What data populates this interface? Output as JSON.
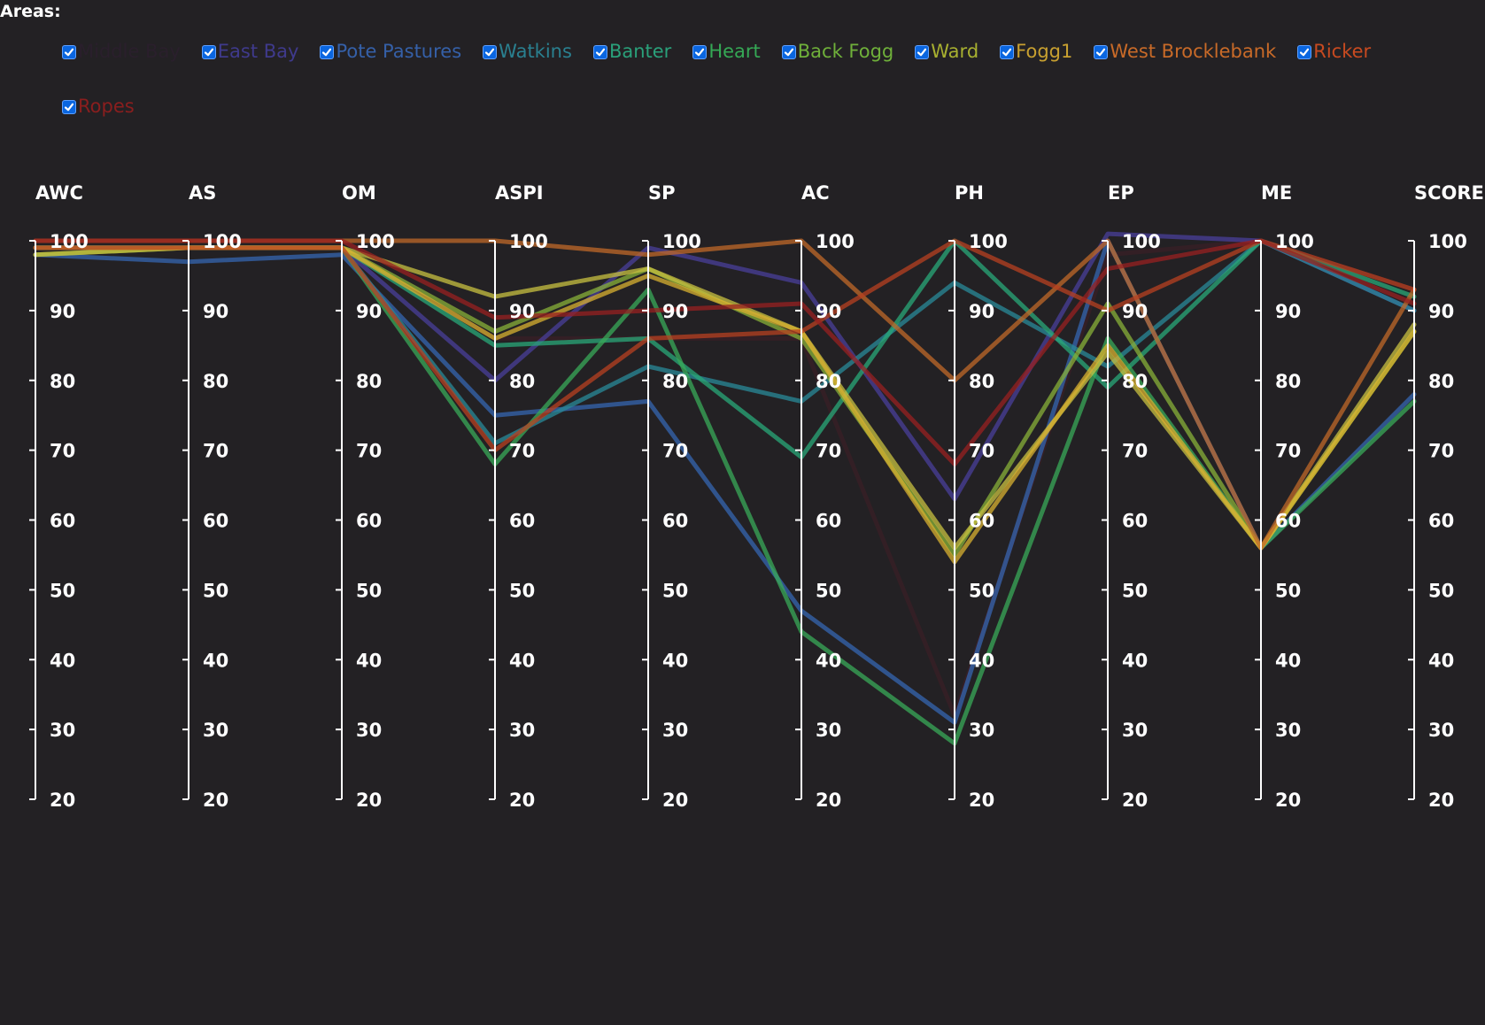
{
  "header": {
    "areas_label": "Areas:"
  },
  "legend": [
    {
      "name": "Middle Bay",
      "color": "#2a1f2c",
      "checked": true
    },
    {
      "name": "East Bay",
      "color": "#3f3a8c",
      "checked": true
    },
    {
      "name": "Pote Pastures",
      "color": "#3560a8",
      "checked": true
    },
    {
      "name": "Watkins",
      "color": "#2a8090",
      "checked": true
    },
    {
      "name": "Banter",
      "color": "#2aa07a",
      "checked": true
    },
    {
      "name": "Heart",
      "color": "#35a855",
      "checked": true
    },
    {
      "name": "Back Fogg",
      "color": "#6fb03a",
      "checked": true
    },
    {
      "name": "Ward",
      "color": "#a8b030",
      "checked": true
    },
    {
      "name": "Fogg1",
      "color": "#c8a030",
      "checked": true
    },
    {
      "name": "West Brocklebank",
      "color": "#c86a28",
      "checked": true
    },
    {
      "name": "Ricker",
      "color": "#c84a20",
      "checked": true
    },
    {
      "name": "Ropes",
      "color": "#8a1e1e",
      "checked": true
    }
  ],
  "chart_data": {
    "type": "parallel_coordinates",
    "axes": [
      "AWC",
      "AS",
      "OM",
      "ASPI",
      "SP",
      "AC",
      "PH",
      "EP",
      "ME",
      "SCORE"
    ],
    "ylim": [
      20,
      100
    ],
    "ticks": [
      100,
      90,
      80,
      70,
      60,
      50,
      40,
      30,
      20
    ],
    "series": [
      {
        "name": "Middle Bay",
        "color": "#3a1f26",
        "values": [
          99,
          99,
          99,
          86,
          86,
          86,
          32,
          98,
          100,
          93
        ]
      },
      {
        "name": "East Bay",
        "color": "#4a3f9a",
        "values": [
          99,
          99,
          99,
          80,
          99,
          94,
          63,
          101,
          100,
          90
        ]
      },
      {
        "name": "Pote Pastures",
        "color": "#3565b0",
        "values": [
          98,
          97,
          98,
          75,
          77,
          47,
          31,
          100,
          56,
          78
        ]
      },
      {
        "name": "Watkins",
        "color": "#2a8a98",
        "values": [
          99,
          99,
          99,
          71,
          82,
          77,
          94,
          82,
          100,
          90
        ]
      },
      {
        "name": "Banter",
        "color": "#2aa878",
        "values": [
          99,
          99,
          99,
          85,
          86,
          69,
          100,
          79,
          100,
          92
        ]
      },
      {
        "name": "Heart",
        "color": "#3aaa58",
        "values": [
          99,
          99,
          99,
          68,
          93,
          44,
          28,
          86,
          56,
          77
        ]
      },
      {
        "name": "Back Fogg",
        "color": "#88b038",
        "values": [
          98,
          99,
          99,
          87,
          96,
          86,
          55,
          91,
          56,
          87
        ]
      },
      {
        "name": "Ward",
        "color": "#c8c040",
        "values": [
          98,
          99,
          99,
          92,
          96,
          87,
          56,
          84,
          56,
          88
        ]
      },
      {
        "name": "Fogg1",
        "color": "#d8b030",
        "values": [
          99,
          99,
          99,
          86,
          95,
          87,
          54,
          85,
          56,
          87
        ]
      },
      {
        "name": "West Brocklebank",
        "color": "#c06828",
        "values": [
          100,
          100,
          100,
          100,
          98,
          100,
          80,
          100,
          56,
          93
        ]
      },
      {
        "name": "Ricker",
        "color": "#b84020",
        "values": [
          99,
          99,
          99,
          70,
          86,
          87,
          100,
          90,
          100,
          93
        ]
      },
      {
        "name": "Ropes",
        "color": "#982020",
        "values": [
          100,
          100,
          100,
          89,
          90,
          91,
          68,
          96,
          100,
          91
        ]
      }
    ]
  }
}
